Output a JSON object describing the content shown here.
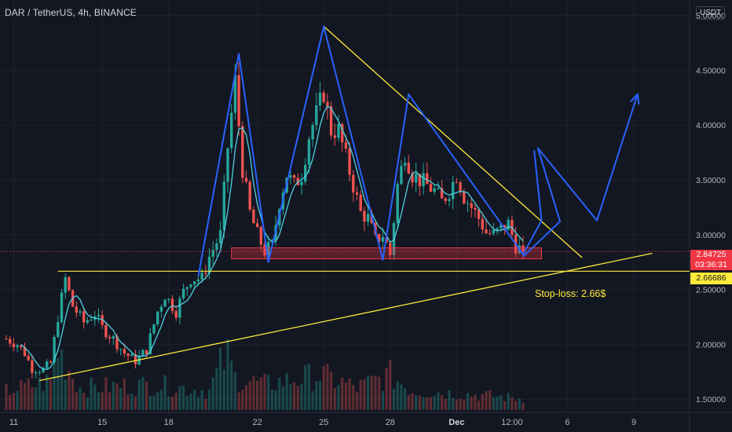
{
  "header": {
    "symbol": "DAR / TetherUS, 4h, BINANCE"
  },
  "price_scale": {
    "unit": "USDT",
    "current_price": "2.84725",
    "countdown": "03:36:31",
    "stop_level_price": "2.66686"
  },
  "annotation": {
    "stop_loss_text": "Stop-loss: 2.66$"
  },
  "colors": {
    "background": "#131722",
    "up": "#26a69a",
    "down": "#ef5350",
    "pattern": "#2962ff",
    "trendline": "#ffeb3b",
    "ma": "#4dd0e1",
    "support_zone": "#f23645"
  },
  "chart_data": {
    "type": "candlestick",
    "ylim": [
      1.38,
      5.14
    ],
    "yticks": [
      "5.00000",
      "4.50000",
      "4.00000",
      "3.50000",
      "3.00000",
      "2.50000",
      "2.00000",
      "1.50000"
    ],
    "ytick_values": [
      5.0,
      4.5,
      4.0,
      3.5,
      3.0,
      2.5,
      2.0,
      1.5
    ],
    "xticks": [
      {
        "label": "11",
        "bar": 2
      },
      {
        "label": "15",
        "bar": 26
      },
      {
        "label": "18",
        "bar": 44
      },
      {
        "label": "22",
        "bar": 68
      },
      {
        "label": "25",
        "bar": 86
      },
      {
        "label": "28",
        "bar": 104
      },
      {
        "label": "Dec",
        "bar": 122
      },
      {
        "label": "12:00",
        "bar": 137
      },
      {
        "label": "6",
        "bar": 152
      },
      {
        "label": "9",
        "bar": 170
      }
    ],
    "last_bar": 140,
    "close_key": [
      [
        0,
        2.05
      ],
      [
        3,
        2.0
      ],
      [
        5,
        1.92
      ],
      [
        7,
        1.78
      ],
      [
        10,
        1.77
      ],
      [
        12,
        1.83
      ],
      [
        14,
        2.25
      ],
      [
        16,
        2.6
      ],
      [
        18,
        2.35
      ],
      [
        21,
        2.2
      ],
      [
        24,
        2.28
      ],
      [
        26,
        2.15
      ],
      [
        29,
        2.05
      ],
      [
        32,
        1.92
      ],
      [
        35,
        1.85
      ],
      [
        38,
        1.95
      ],
      [
        41,
        2.3
      ],
      [
        43,
        2.45
      ],
      [
        46,
        2.3
      ],
      [
        48,
        2.48
      ],
      [
        50,
        2.6
      ],
      [
        53,
        2.6
      ],
      [
        55,
        2.8
      ],
      [
        58,
        3.0
      ],
      [
        60,
        3.8
      ],
      [
        62,
        4.4
      ],
      [
        64,
        3.6
      ],
      [
        66,
        3.2
      ],
      [
        68,
        3.0
      ],
      [
        70,
        2.85
      ],
      [
        72,
        2.9
      ],
      [
        74,
        3.3
      ],
      [
        76,
        3.55
      ],
      [
        78,
        3.45
      ],
      [
        80,
        3.55
      ],
      [
        82,
        3.9
      ],
      [
        84,
        4.1
      ],
      [
        86,
        4.3
      ],
      [
        88,
        3.95
      ],
      [
        90,
        3.95
      ],
      [
        92,
        3.7
      ],
      [
        94,
        3.45
      ],
      [
        96,
        3.2
      ],
      [
        98,
        3.15
      ],
      [
        100,
        2.95
      ],
      [
        102,
        3.0
      ],
      [
        104,
        2.82
      ],
      [
        106,
        3.45
      ],
      [
        108,
        3.75
      ],
      [
        110,
        3.55
      ],
      [
        112,
        3.5
      ],
      [
        114,
        3.45
      ],
      [
        116,
        3.4
      ],
      [
        118,
        3.3
      ],
      [
        120,
        3.4
      ],
      [
        122,
        3.55
      ],
      [
        124,
        3.35
      ],
      [
        126,
        3.25
      ],
      [
        128,
        3.15
      ],
      [
        130,
        3.02
      ],
      [
        132,
        3.0
      ],
      [
        134,
        3.05
      ],
      [
        136,
        3.1
      ],
      [
        138,
        2.9
      ],
      [
        140,
        2.84725
      ]
    ],
    "volume_key": [
      [
        0,
        0.3
      ],
      [
        12,
        0.45
      ],
      [
        14,
        0.95
      ],
      [
        20,
        0.35
      ],
      [
        40,
        0.4
      ],
      [
        55,
        0.3
      ],
      [
        58,
        0.7
      ],
      [
        60,
        0.85
      ],
      [
        62,
        0.5
      ],
      [
        70,
        0.4
      ],
      [
        85,
        0.55
      ],
      [
        95,
        0.35
      ],
      [
        104,
        0.55
      ],
      [
        110,
        0.3
      ],
      [
        125,
        0.25
      ],
      [
        140,
        0.18
      ]
    ],
    "moving_average_period": 5,
    "support_zone": [
      2.78,
      2.88
    ],
    "stop_loss_level": 2.66686,
    "horizontal_line_start_bar": 14,
    "ascending_trendline": [
      [
        9,
        1.67
      ],
      [
        175,
        2.83
      ]
    ],
    "descending_trendline": [
      [
        86,
        4.9
      ],
      [
        156,
        2.79
      ]
    ],
    "pattern_path": [
      [
        52,
        2.62
      ],
      [
        63,
        4.65
      ],
      [
        71,
        2.75
      ],
      [
        86,
        4.9
      ],
      [
        102,
        2.77
      ],
      [
        109,
        4.28
      ],
      [
        140,
        2.82
      ],
      [
        145,
        3.13
      ],
      [
        143,
        3.77
      ]
    ],
    "projection_arrow": [
      [
        140,
        2.8
      ],
      [
        150,
        3.12
      ],
      [
        144,
        3.79
      ],
      [
        160,
        3.13
      ],
      [
        171,
        4.28
      ]
    ],
    "current_price_value": 2.84725
  }
}
